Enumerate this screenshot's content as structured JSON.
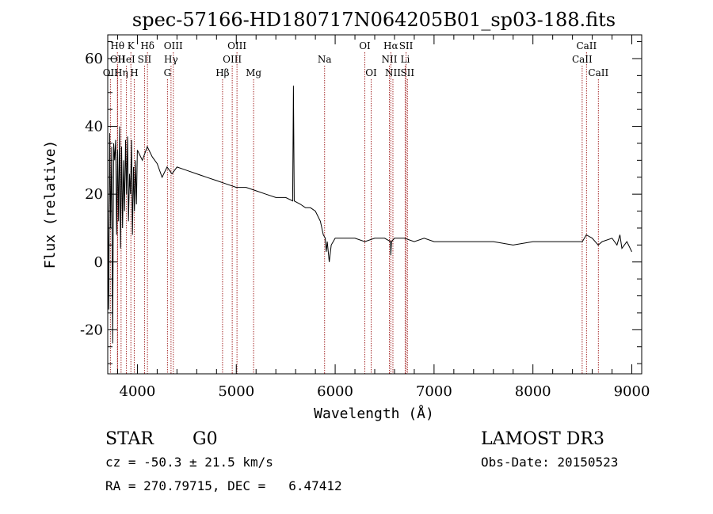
{
  "chart_data": {
    "type": "line",
    "title": "spec-57166-HD180717N064205B01_sp03-188.fits",
    "xlabel": "Wavelength (Å)",
    "ylabel": "Flux (relative)",
    "xlim": [
      3700,
      9100
    ],
    "ylim": [
      -33,
      67
    ],
    "xticks": [
      4000,
      5000,
      6000,
      7000,
      8000,
      9000
    ],
    "yticks": [
      -20,
      0,
      20,
      40,
      60
    ],
    "series": [
      {
        "name": "spectrum",
        "x": [
          3700,
          3710,
          3720,
          3730,
          3740,
          3750,
          3760,
          3770,
          3780,
          3790,
          3800,
          3810,
          3820,
          3830,
          3840,
          3850,
          3860,
          3870,
          3880,
          3890,
          3900,
          3910,
          3920,
          3930,
          3940,
          3950,
          3960,
          3970,
          3980,
          3990,
          4000,
          4050,
          4100,
          4150,
          4200,
          4250,
          4300,
          4350,
          4400,
          4500,
          4600,
          4700,
          4800,
          4900,
          5000,
          5100,
          5200,
          5300,
          5400,
          5500,
          5570,
          5578,
          5586,
          5650,
          5700,
          5750,
          5800,
          5850,
          5880,
          5900,
          5910,
          5920,
          5940,
          5960,
          6000,
          6100,
          6200,
          6300,
          6400,
          6500,
          6560,
          6563,
          6570,
          6600,
          6700,
          6800,
          6900,
          7000,
          7200,
          7400,
          7600,
          7800,
          8000,
          8200,
          8400,
          8500,
          8540,
          8600,
          8660,
          8700,
          8800,
          8850,
          8880,
          8900,
          8950,
          9000
        ],
        "values": [
          22,
          -14,
          38,
          10,
          34,
          -24,
          35,
          30,
          36,
          8,
          33,
          12,
          40,
          4,
          34,
          10,
          30,
          15,
          36,
          20,
          37,
          12,
          26,
          20,
          36,
          8,
          28,
          15,
          30,
          17,
          33,
          30,
          34,
          31,
          29,
          25,
          28,
          26,
          28,
          27,
          26,
          25,
          24,
          23,
          22,
          22,
          21,
          20,
          19,
          19,
          18,
          52,
          18,
          17,
          16,
          16,
          15,
          12,
          8,
          7,
          3,
          6,
          0,
          5,
          7,
          7,
          7,
          6,
          7,
          7,
          6,
          2,
          6,
          7,
          7,
          6,
          7,
          6,
          6,
          6,
          6,
          5,
          6,
          6,
          6,
          6,
          8,
          7,
          5,
          6,
          7,
          5,
          8,
          4,
          6,
          3
        ]
      }
    ],
    "lines": [
      {
        "name": "OII",
        "wavelength": 3727,
        "row": 3
      },
      {
        "name": "Hθ",
        "wavelength": 3798,
        "row": 1
      },
      {
        "name": "OII",
        "wavelength": 3800,
        "row": 2
      },
      {
        "name": "Hη",
        "wavelength": 3835,
        "row": 3
      },
      {
        "name": "HeI",
        "wavelength": 3889,
        "row": 2
      },
      {
        "name": "K",
        "wavelength": 3934,
        "row": 1
      },
      {
        "name": "H",
        "wavelength": 3968,
        "row": 3
      },
      {
        "name": "SII",
        "wavelength": 4072,
        "row": 2
      },
      {
        "name": "Hδ",
        "wavelength": 4102,
        "row": 1
      },
      {
        "name": "G",
        "wavelength": 4304,
        "row": 3
      },
      {
        "name": "Hγ",
        "wavelength": 4340,
        "row": 2
      },
      {
        "name": "OIII",
        "wavelength": 4363,
        "row": 1
      },
      {
        "name": "Hβ",
        "wavelength": 4861,
        "row": 3
      },
      {
        "name": "OIII",
        "wavelength": 4959,
        "row": 2
      },
      {
        "name": "OIII",
        "wavelength": 5007,
        "row": 1
      },
      {
        "name": "Mg",
        "wavelength": 5175,
        "row": 3
      },
      {
        "name": "Na",
        "wavelength": 5893,
        "row": 2
      },
      {
        "name": "OI",
        "wavelength": 6300,
        "row": 1
      },
      {
        "name": "OI",
        "wavelength": 6364,
        "row": 3
      },
      {
        "name": "NII",
        "wavelength": 6548,
        "row": 2
      },
      {
        "name": "Hα",
        "wavelength": 6563,
        "row": 1
      },
      {
        "name": "NII",
        "wavelength": 6584,
        "row": 3
      },
      {
        "name": "Li",
        "wavelength": 6708,
        "row": 2
      },
      {
        "name": "SII",
        "wavelength": 6717,
        "row": 1
      },
      {
        "name": "SII",
        "wavelength": 6731,
        "row": 3
      },
      {
        "name": "CaII",
        "wavelength": 8498,
        "row": 2
      },
      {
        "name": "CaII",
        "wavelength": 8542,
        "row": 1
      },
      {
        "name": "CaII",
        "wavelength": 8662,
        "row": 3
      }
    ]
  },
  "info": {
    "object_class": "STAR",
    "subclass": "G0",
    "survey": "LAMOST DR3",
    "cz": "cz = -50.3 ± 21.5 km/s",
    "obs_date": "Obs-Date: 20150523",
    "coords": "RA = 270.79715, DEC =   6.47412"
  },
  "colors": {
    "line_marker": "#a52a2a",
    "spectrum": "#000000"
  }
}
